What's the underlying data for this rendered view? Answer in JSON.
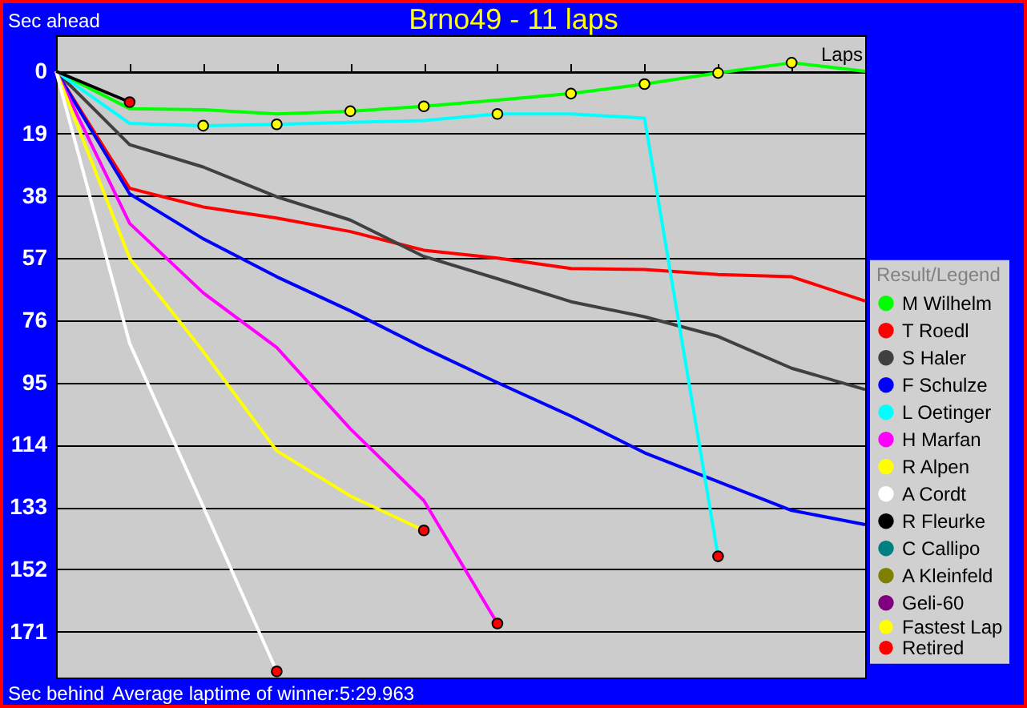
{
  "chart_data": {
    "type": "line",
    "title": "Brno49 - 11 laps",
    "xlabel": "Laps",
    "legend_title": "Result/Legend",
    "annotations": [
      "Sec ahead",
      "Sec behind",
      "Average laptime of winner:5:29.963"
    ],
    "categories": [
      null,
      null,
      null,
      null,
      null,
      null,
      null,
      null,
      null,
      null,
      null,
      null
    ],
    "series": [
      {
        "name": "M Wilhelm",
        "color": "#00ff00",
        "values": [
          0,
          11.4,
          11.7,
          13,
          12.2,
          10.7,
          8.8,
          6.8,
          3.9,
          0.5,
          -2.6,
          0
        ]
      },
      {
        "name": "T Roedl",
        "color": "#ff0000",
        "values": [
          0,
          35.7,
          41.4,
          44.8,
          48.9,
          54.6,
          57,
          60.2,
          60.5,
          62,
          62.7,
          70.1
        ]
      },
      {
        "name": "S Haler",
        "color": "#404040",
        "values": [
          0,
          22.4,
          29.2,
          38.3,
          45.4,
          56.5,
          63.3,
          70.3,
          74.9,
          80.9,
          90.6,
          97.1
        ]
      },
      {
        "name": "F Schulze",
        "color": "#0000ff",
        "values": [
          0,
          37.4,
          51.1,
          62.7,
          73.1,
          84.4,
          95,
          105.2,
          116.4,
          125.2,
          134,
          138.3
        ]
      },
      {
        "name": "L Oetinger",
        "color": "#00ffff",
        "values": [
          0,
          15.9,
          16.6,
          16.2,
          15.6,
          15,
          13,
          13,
          14.3,
          148,
          null,
          null
        ]
      },
      {
        "name": "H Marfan",
        "color": "#ff00ff",
        "values": [
          0,
          46.4,
          67.6,
          84.3,
          109.1,
          131,
          168.5,
          null,
          null,
          null,
          null,
          null
        ]
      },
      {
        "name": "R Alpen",
        "color": "#ffff00",
        "values": [
          0,
          57,
          85.5,
          115.8,
          129.6,
          140.1,
          null,
          null,
          null,
          null,
          null,
          null
        ]
      },
      {
        "name": "A Cordt",
        "color": "#ffffff",
        "values": [
          0,
          83,
          132.8,
          183.1,
          null,
          null,
          null,
          null,
          null,
          null,
          null,
          null
        ]
      },
      {
        "name": "R Fleurke",
        "color": "#000000",
        "values": [
          0,
          9.4,
          null,
          null,
          null,
          null,
          null,
          null,
          null,
          null,
          null,
          null
        ]
      },
      {
        "name": "C Callipo",
        "color": "#008080",
        "values": [
          null,
          null,
          null,
          null,
          null,
          null,
          null,
          null,
          null,
          null,
          null,
          null
        ]
      },
      {
        "name": "A Kleinfeld",
        "color": "#808000",
        "values": [
          null,
          null,
          null,
          null,
          null,
          null,
          null,
          null,
          null,
          null,
          null,
          null
        ]
      },
      {
        "name": "Geli-60",
        "color": "#800080",
        "values": [
          null,
          null,
          null,
          null,
          null,
          null,
          null,
          null,
          null,
          null,
          null,
          null
        ]
      },
      {
        "name": "Fastest Lap",
        "type": "scatter",
        "marker": "circle",
        "color": "#ffff00",
        "values": [
          null,
          null,
          16.6,
          16.2,
          12.2,
          10.7,
          13,
          6.8,
          3.9,
          0.5,
          -2.6,
          null
        ]
      },
      {
        "name": "Retired",
        "type": "scatter",
        "marker": "circle",
        "color": "#ff0000",
        "values": [
          null,
          9.4,
          null,
          183.1,
          null,
          140.1,
          168.5,
          null,
          null,
          148,
          null,
          null
        ]
      }
    ],
    "ylim": [
      185,
      -11
    ],
    "yticks": [
      0,
      19,
      38,
      57,
      76,
      95,
      114,
      133,
      152,
      171
    ],
    "grid": "y",
    "legend": "right"
  }
}
